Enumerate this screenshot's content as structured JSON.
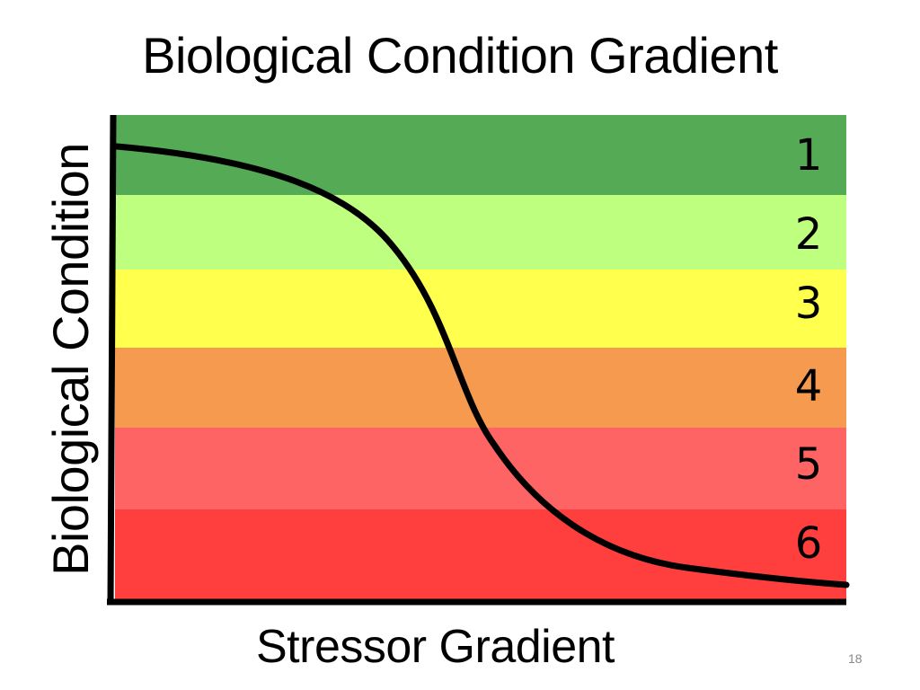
{
  "title": "Biological Condition Gradient",
  "y_axis_label": "Biological Condition",
  "x_axis_label": "Stressor Gradient",
  "page_number": "18",
  "tiers": [
    {
      "label": "1",
      "color": "#55aa55"
    },
    {
      "label": "2",
      "color": "#bfff80"
    },
    {
      "label": "3",
      "color": "#ffff4d"
    },
    {
      "label": "4",
      "color": "#f59a4e"
    },
    {
      "label": "5",
      "color": "#ff6464"
    },
    {
      "label": "6",
      "color": "#ff3e3e"
    }
  ],
  "curve_color": "#000000"
}
